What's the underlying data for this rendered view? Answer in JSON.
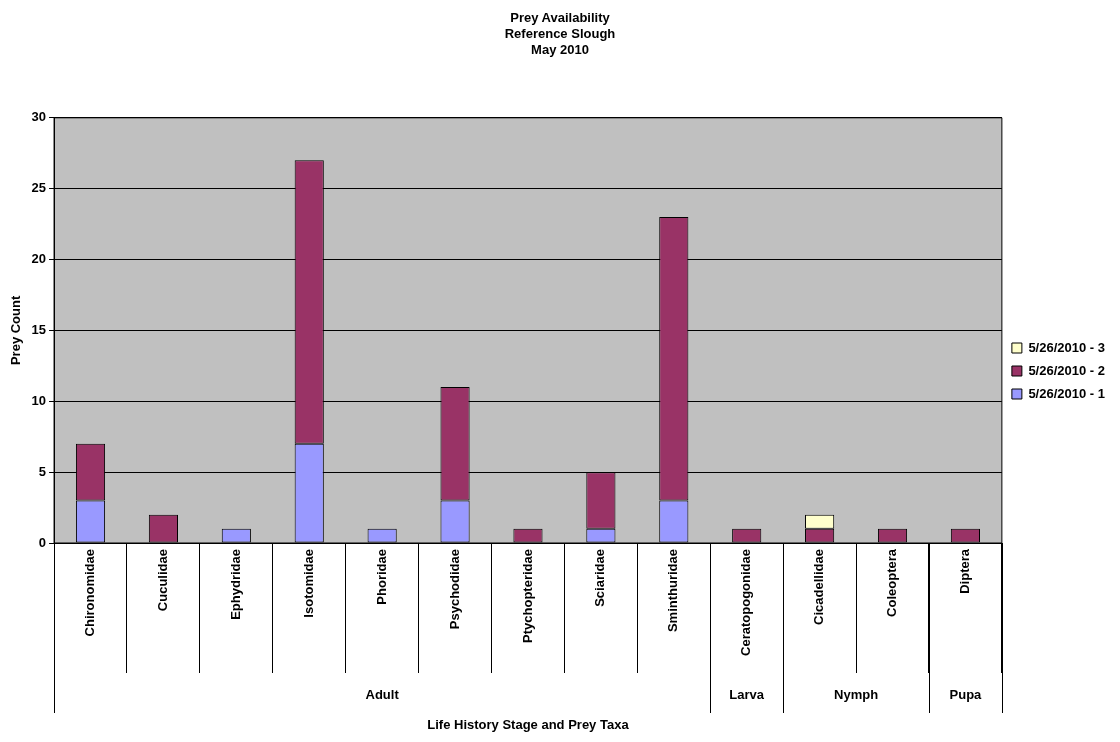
{
  "chart_data": {
    "type": "bar",
    "title": "Prey Availability\nReference Slough\nMay 2010",
    "xlabel": "Life History Stage and Prey Taxa",
    "ylabel": "Prey Count",
    "categories": [
      "Chironomidae",
      "Cuculidae",
      "Ephydridae",
      "Isotomidae",
      "Phoridae",
      "Psychodidae",
      "Ptychopteridae",
      "Sciaridae",
      "Sminthuridae",
      "Ceratopogonidae",
      "Cicadellidae",
      "Coleoptera",
      "Diptera"
    ],
    "series": [
      {
        "name": "5/26/2010 - 1",
        "color": "#9999ff",
        "values": [
          3,
          0,
          1,
          7,
          1,
          3,
          0,
          1,
          3,
          0,
          0,
          0,
          0
        ]
      },
      {
        "name": "5/26/2010 - 2",
        "color": "#993366",
        "values": [
          4,
          2,
          0,
          20,
          0,
          8,
          1,
          4,
          20,
          1,
          1,
          1,
          1
        ]
      },
      {
        "name": "5/26/2010 - 3",
        "color": "#ffffcc",
        "values": [
          0,
          0,
          0,
          0,
          0,
          0,
          0,
          0,
          0,
          0,
          1,
          0,
          0
        ]
      }
    ],
    "stacked": true,
    "ylim": [
      0,
      30
    ],
    "yticks": [
      0,
      5,
      10,
      15,
      20,
      25,
      30
    ],
    "grid": "y",
    "legend": "right",
    "annotations": [
      "Adult",
      "Larva",
      "Nymph",
      "Pupa"
    ]
  }
}
